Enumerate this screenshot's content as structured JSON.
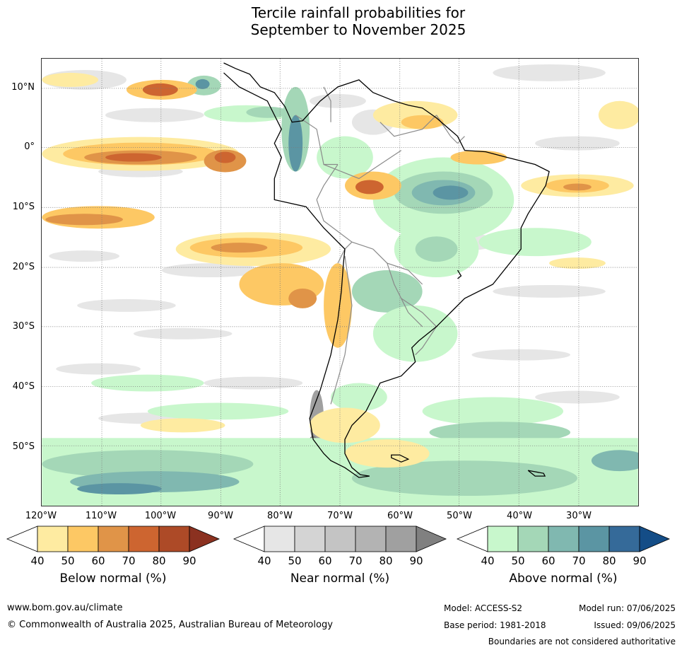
{
  "title_line1": "Tercile rainfall probabilities for",
  "title_line2": "September to November 2025",
  "map": {
    "lat_labels": [
      "10°N",
      "0°",
      "10°S",
      "20°S",
      "30°S",
      "40°S",
      "50°S"
    ],
    "lon_labels": [
      "120°W",
      "110°W",
      "100°W",
      "90°W",
      "80°W",
      "70°W",
      "60°W",
      "50°W",
      "40°W",
      "30°W"
    ],
    "colors": {
      "coast": "#000000",
      "border": "#8a8a8a",
      "grid": "#7a7a7a"
    }
  },
  "colorbars": [
    {
      "title": "Below normal (%)",
      "ticks": [
        "40",
        "50",
        "60",
        "70",
        "80",
        "90"
      ],
      "colors": [
        "#ffffff",
        "#feeba1",
        "#fdc864",
        "#e09448",
        "#cd6530",
        "#ad4a27",
        "#8b3120"
      ]
    },
    {
      "title": "Near normal (%)",
      "ticks": [
        "40",
        "50",
        "60",
        "70",
        "80",
        "90"
      ],
      "colors": [
        "#ffffff",
        "#e6e6e6",
        "#d4d4d4",
        "#c4c4c4",
        "#b3b3b3",
        "#a0a0a0",
        "#808080"
      ]
    },
    {
      "title": "Above normal (%)",
      "ticks": [
        "40",
        "50",
        "60",
        "70",
        "80",
        "90"
      ],
      "colors": [
        "#ffffff",
        "#c8f7cc",
        "#a4d7b7",
        "#80b8b0",
        "#5b95a3",
        "#356a99",
        "#144d87"
      ]
    }
  ],
  "footer": {
    "url": "www.bom.gov.au/climate",
    "copyright": "© Commonwealth of Australia 2025, Australian Bureau of Meteorology",
    "model": "Model: ACCESS-S2",
    "model_run": "Model run: 07/06/2025",
    "base_period": "Base period: 1981-2018",
    "issued": "Issued: 09/06/2025",
    "disclaimer": "Boundaries are not considered authoritative"
  }
}
